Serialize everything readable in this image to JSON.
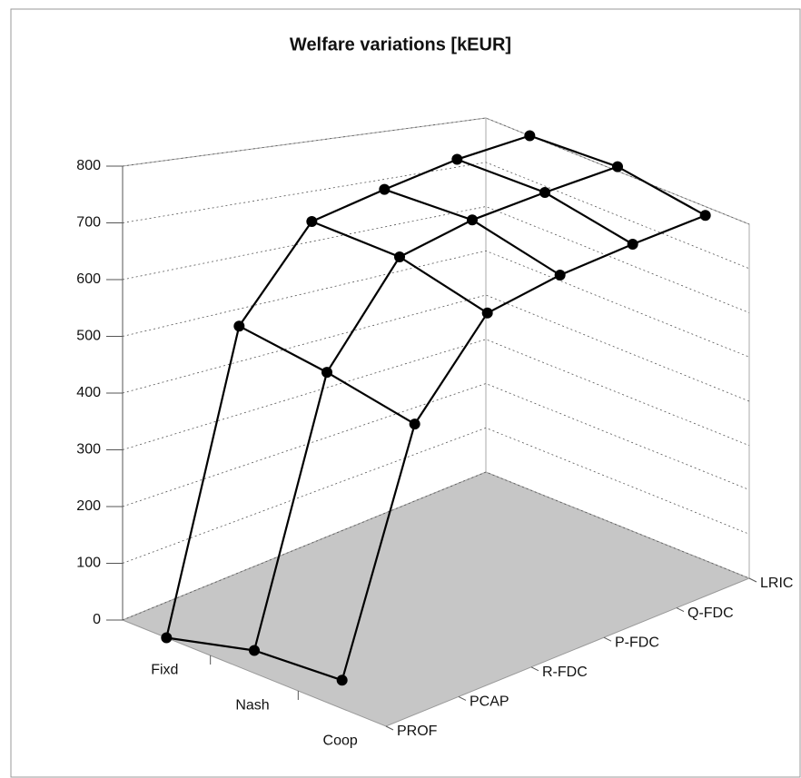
{
  "chart_data": {
    "type": "surface3d",
    "title": "Welfare variations [kEUR]",
    "categories": [
      "PROF",
      "PCAP",
      "R-FDC",
      "P-FDC",
      "Q-FDC",
      "LRIC"
    ],
    "series": [
      {
        "name": "Fixd",
        "color": "#000000",
        "values": [
          0,
          520,
          690,
          730,
          770,
          800
        ]
      },
      {
        "name": "Nash",
        "color": "#000000",
        "values": [
          40,
          500,
          690,
          740,
          775,
          810
        ]
      },
      {
        "name": "Coop",
        "color": "#000000",
        "values": [
          50,
          470,
          650,
          700,
          740,
          780
        ]
      }
    ],
    "ylim": [
      0,
      800
    ],
    "yticks": [
      0,
      100,
      200,
      300,
      400,
      500,
      600,
      700,
      800
    ],
    "grid": true
  }
}
